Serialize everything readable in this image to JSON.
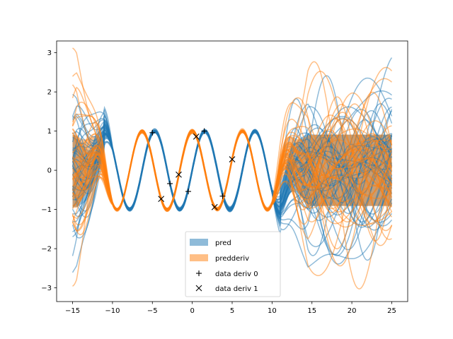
{
  "chart_data": {
    "type": "line",
    "xlim": [
      -17,
      27
    ],
    "ylim": [
      -3.35,
      3.3
    ],
    "xticks": [
      -15,
      -10,
      -5,
      0,
      5,
      10,
      15,
      20,
      25
    ],
    "yticks": [
      -3,
      -2,
      -1,
      0,
      1,
      2,
      3
    ],
    "xtick_labels": [
      "−15",
      "−10",
      "−5",
      "0",
      "5",
      "10",
      "15",
      "20",
      "25"
    ],
    "ytick_labels": [
      "−3",
      "−2",
      "−1",
      "0",
      "1",
      "2",
      "3"
    ],
    "grid": false,
    "legend_placement": "lower-center",
    "colors": {
      "pred": "#1f77b4",
      "predderiv": "#ff7f0e",
      "data": "#000000"
    },
    "series": [
      {
        "name": "pred",
        "kind": "band",
        "function": "sin",
        "samples": 40,
        "train_range": [
          -10,
          10
        ]
      },
      {
        "name": "predderiv",
        "kind": "band",
        "function": "cos",
        "samples": 40,
        "train_range": [
          -10,
          10
        ]
      },
      {
        "name": "data deriv 0",
        "kind": "points",
        "marker": "+",
        "x": [
          -5.0,
          -2.8,
          -0.5,
          1.5,
          3.8
        ],
        "y": [
          0.96,
          -0.34,
          -0.54,
          1.0,
          -0.66
        ]
      },
      {
        "name": "data deriv 1",
        "kind": "points",
        "marker": "x",
        "x": [
          -3.9,
          -1.7,
          0.5,
          2.8,
          5.0
        ],
        "y": [
          -0.73,
          -0.11,
          0.86,
          -0.94,
          0.28
        ]
      }
    ],
    "legend": [
      {
        "label": "pred",
        "kind": "patch",
        "color": "#1f77b4"
      },
      {
        "label": "predderiv",
        "kind": "patch",
        "color": "#ff7f0e"
      },
      {
        "label": "data deriv 0",
        "kind": "marker",
        "marker": "+"
      },
      {
        "label": "data deriv 1",
        "kind": "marker",
        "marker": "x"
      }
    ]
  }
}
